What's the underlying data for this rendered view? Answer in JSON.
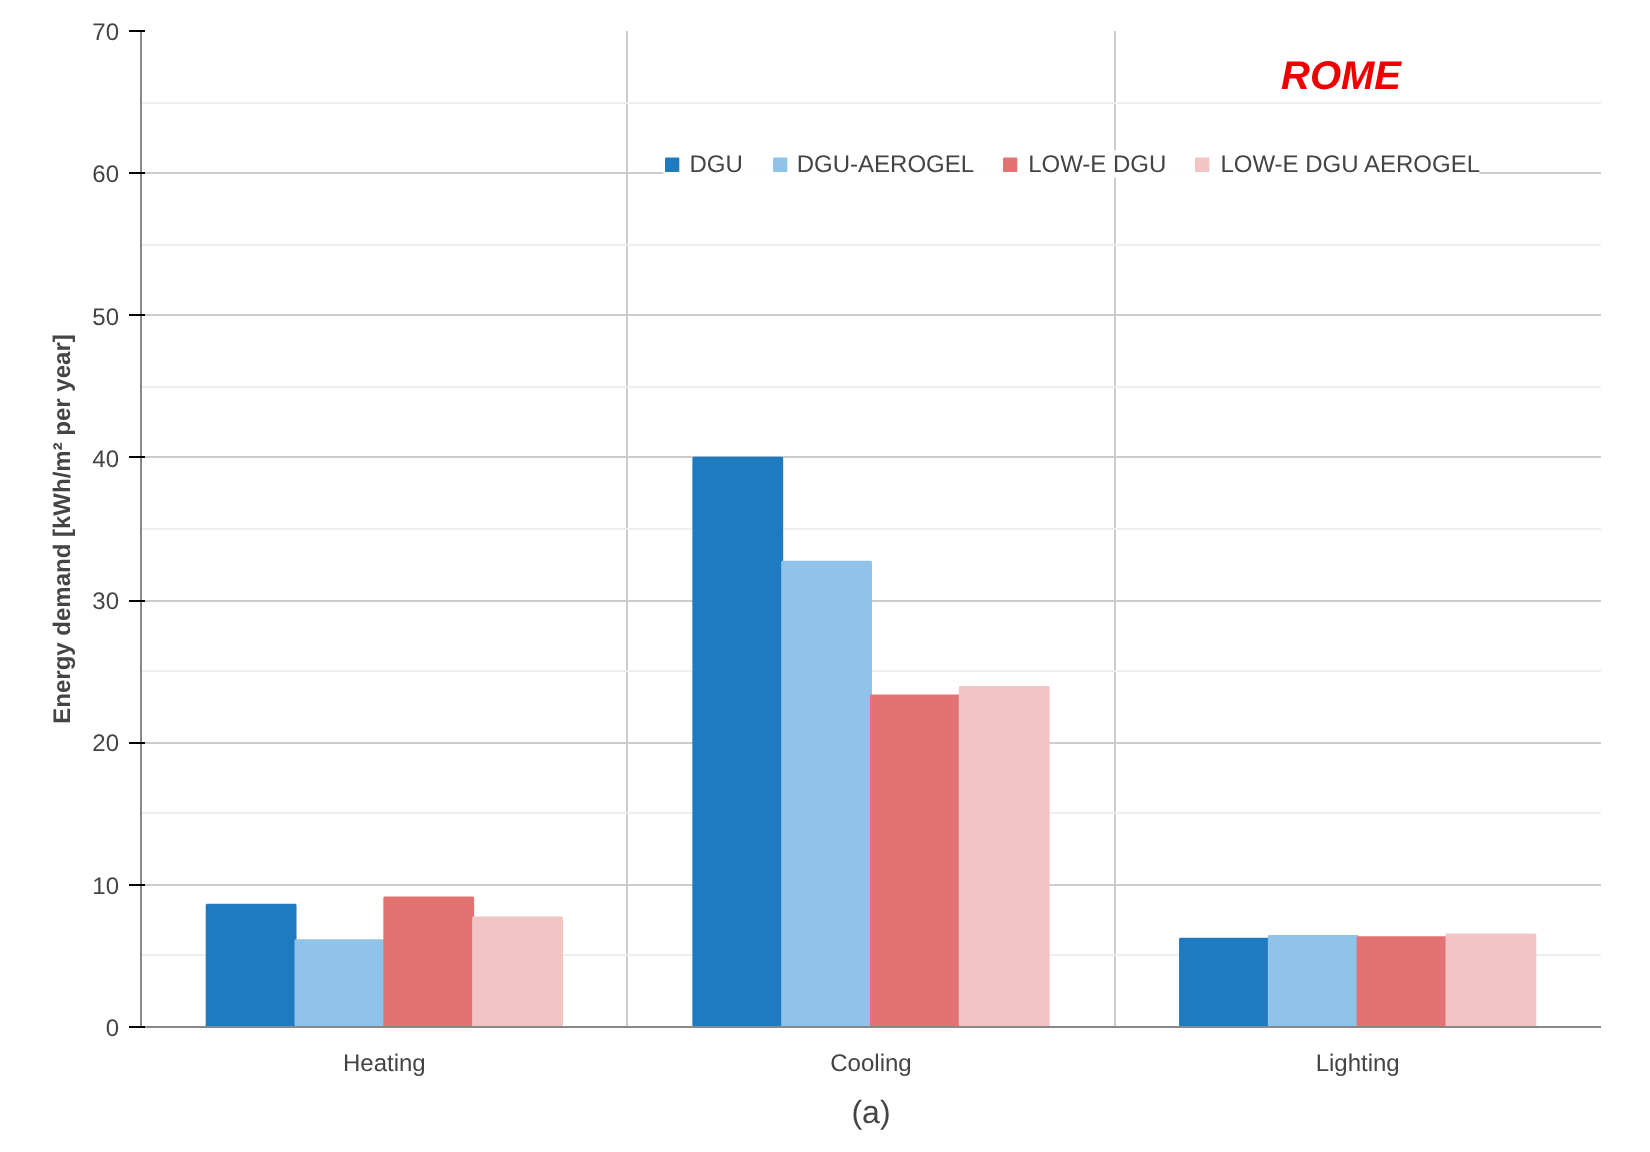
{
  "chart_data": {
    "type": "bar",
    "ylabel": "Energy demand [kWh/m² per year]",
    "categories": [
      "Heating",
      "Cooling",
      "Lighting"
    ],
    "series": [
      {
        "name": "DGU",
        "color": "#1f7bbf",
        "values": [
          8.6,
          40.0,
          6.2
        ]
      },
      {
        "name": "DGU-AEROGEL",
        "color": "#8fc3ea",
        "values": [
          6.1,
          32.7,
          6.4
        ]
      },
      {
        "name": "LOW-E DGU",
        "color": "#e37373",
        "values": [
          9.1,
          23.3,
          6.3
        ]
      },
      {
        "name": "LOW-E DGU AEROGEL",
        "color": "#f2c4c4",
        "values": [
          7.7,
          23.9,
          6.5
        ]
      }
    ],
    "ylim": [
      0,
      70
    ],
    "yticks": [
      0,
      10,
      20,
      30,
      40,
      50,
      60,
      70
    ],
    "grid": true,
    "legend": "top right",
    "annotations": [
      "ROME",
      "(a)"
    ]
  }
}
